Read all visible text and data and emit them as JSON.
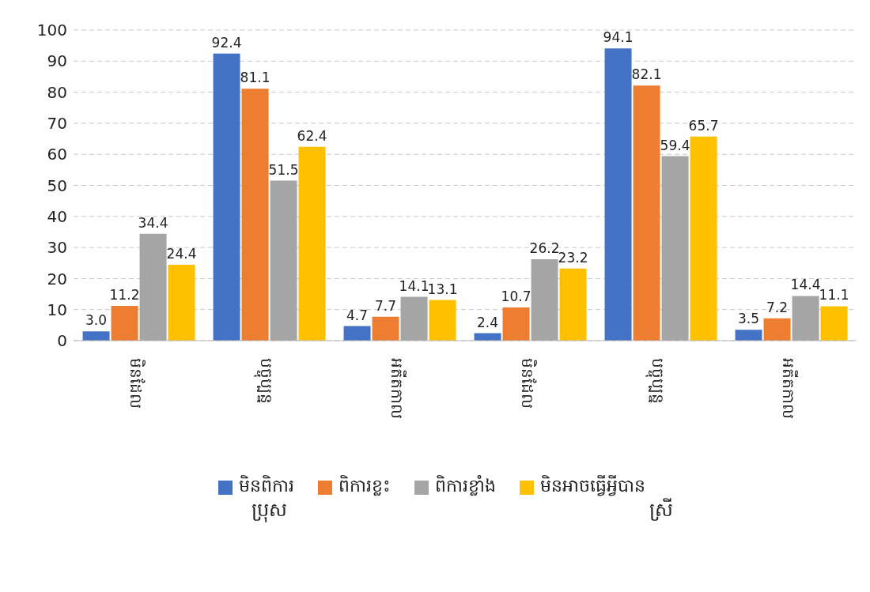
{
  "chart_data": {
    "type": "bar",
    "categories": [
      "មិនដែល",
      "បច្ចុប្បន្ន",
      "អតីតកាល",
      "មិនដែល",
      "បច្ចុប្បន្ន",
      "អតីតកាល"
    ],
    "series": [
      {
        "name": "មិនពិការ",
        "color": "#4472c4",
        "values": [
          3.0,
          92.4,
          4.7,
          2.4,
          94.1,
          3.5
        ],
        "value_labels": [
          "3.0",
          "92.4",
          "4.7",
          "2.4",
          "94.1",
          "3.5"
        ]
      },
      {
        "name": "ពិការខ្លះ",
        "color": "#ed7d31",
        "values": [
          11.2,
          81.1,
          7.7,
          10.7,
          82.1,
          7.2
        ],
        "value_labels": [
          "11.2",
          "81.1",
          "7.7",
          "10.7",
          "82.1",
          "7.2"
        ]
      },
      {
        "name": "ពិការខ្លាំង",
        "color": "#a5a5a5",
        "values": [
          34.4,
          51.5,
          14.1,
          26.2,
          59.4,
          14.4
        ],
        "value_labels": [
          "34.4",
          "51.5",
          "14.1",
          "26.2",
          "59.4",
          "14.4"
        ]
      },
      {
        "name": "មិនអាចធ្វើអ្វីបាន",
        "color": "#ffc000",
        "values": [
          24.4,
          62.4,
          13.1,
          23.2,
          65.7,
          11.1
        ],
        "value_labels": [
          "24.4",
          "62.4",
          "13.1",
          "23.2",
          "65.7",
          "11.1"
        ]
      }
    ],
    "annotations": [
      "ប្រុស",
      "ស្រី"
    ],
    "ylim": [
      0,
      100
    ],
    "yticks": [
      0,
      10,
      20,
      30,
      40,
      50,
      60,
      70,
      80,
      90,
      100
    ],
    "grid": "y",
    "legend": "bottom"
  }
}
